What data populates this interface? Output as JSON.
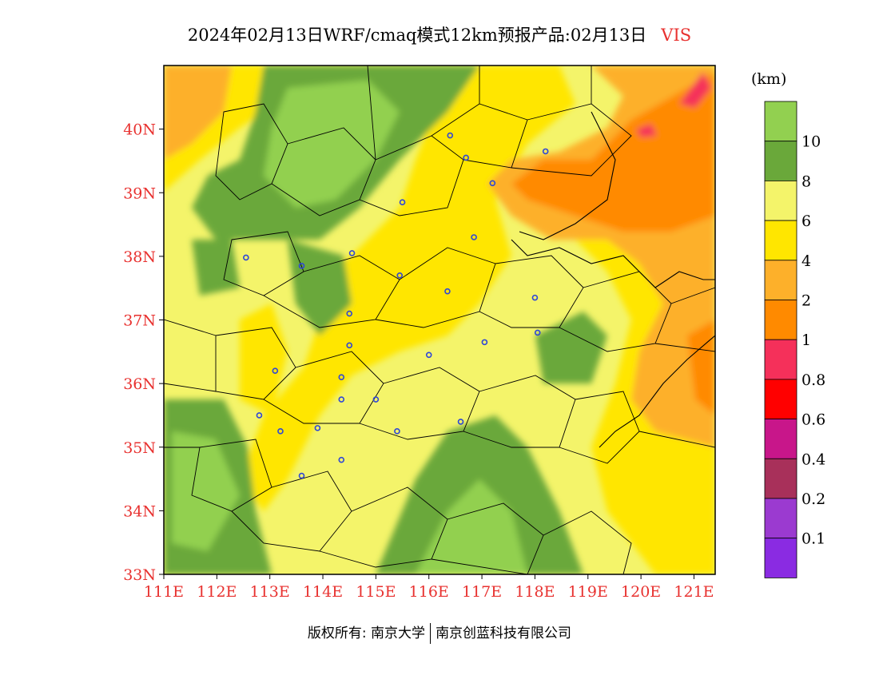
{
  "title": {
    "main": "2024年02月13日WRF/cmaq模式12km预报产品:02月13日",
    "variable": "VIS"
  },
  "colorbar": {
    "unit": "(km)",
    "levels": [
      {
        "label": "",
        "color": "#92d050"
      },
      {
        "label": "10",
        "color": "#6aa83a"
      },
      {
        "label": "8",
        "color": "#f4f46a"
      },
      {
        "label": "6",
        "color": "#ffe600"
      },
      {
        "label": "4",
        "color": "#fdb02a"
      },
      {
        "label": "2",
        "color": "#ff8a00"
      },
      {
        "label": "1",
        "color": "#f5305a"
      },
      {
        "label": "0.8",
        "color": "#ff0000"
      },
      {
        "label": "0.6",
        "color": "#c8168a"
      },
      {
        "label": "0.4",
        "color": "#a8305a"
      },
      {
        "label": "0.2",
        "color": "#9b3ad0"
      },
      {
        "label": "0.1",
        "color": "#8a2be2"
      }
    ]
  },
  "map": {
    "lon_range": [
      111,
      121.4
    ],
    "lat_range": [
      33,
      41
    ],
    "lon_ticks": [
      "111E",
      "112E",
      "113E",
      "114E",
      "115E",
      "116E",
      "117E",
      "118E",
      "119E",
      "120E",
      "121E"
    ],
    "lat_ticks": [
      "33N",
      "34N",
      "35N",
      "36N",
      "37N",
      "38N",
      "39N",
      "40N"
    ],
    "tick_color": "#e8312f",
    "stations": [
      [
        116.4,
        39.9
      ],
      [
        116.7,
        39.55
      ],
      [
        117.2,
        39.15
      ],
      [
        118.2,
        39.65
      ],
      [
        115.5,
        38.85
      ],
      [
        116.85,
        38.3
      ],
      [
        112.55,
        37.98
      ],
      [
        113.6,
        37.85
      ],
      [
        114.55,
        38.05
      ],
      [
        115.45,
        37.7
      ],
      [
        116.35,
        37.45
      ],
      [
        118.0,
        37.35
      ],
      [
        114.5,
        37.1
      ],
      [
        114.5,
        36.6
      ],
      [
        116.0,
        36.45
      ],
      [
        117.05,
        36.65
      ],
      [
        118.05,
        36.8
      ],
      [
        113.1,
        36.2
      ],
      [
        114.35,
        36.1
      ],
      [
        114.35,
        35.75
      ],
      [
        115.0,
        35.75
      ],
      [
        112.8,
        35.5
      ],
      [
        113.2,
        35.25
      ],
      [
        113.9,
        35.3
      ],
      [
        115.4,
        35.25
      ],
      [
        116.6,
        35.4
      ],
      [
        114.35,
        34.8
      ],
      [
        113.6,
        34.55
      ]
    ]
  },
  "footer": {
    "left": "版权所有: 南京大学",
    "right": "南京创蓝科技有限公司"
  }
}
